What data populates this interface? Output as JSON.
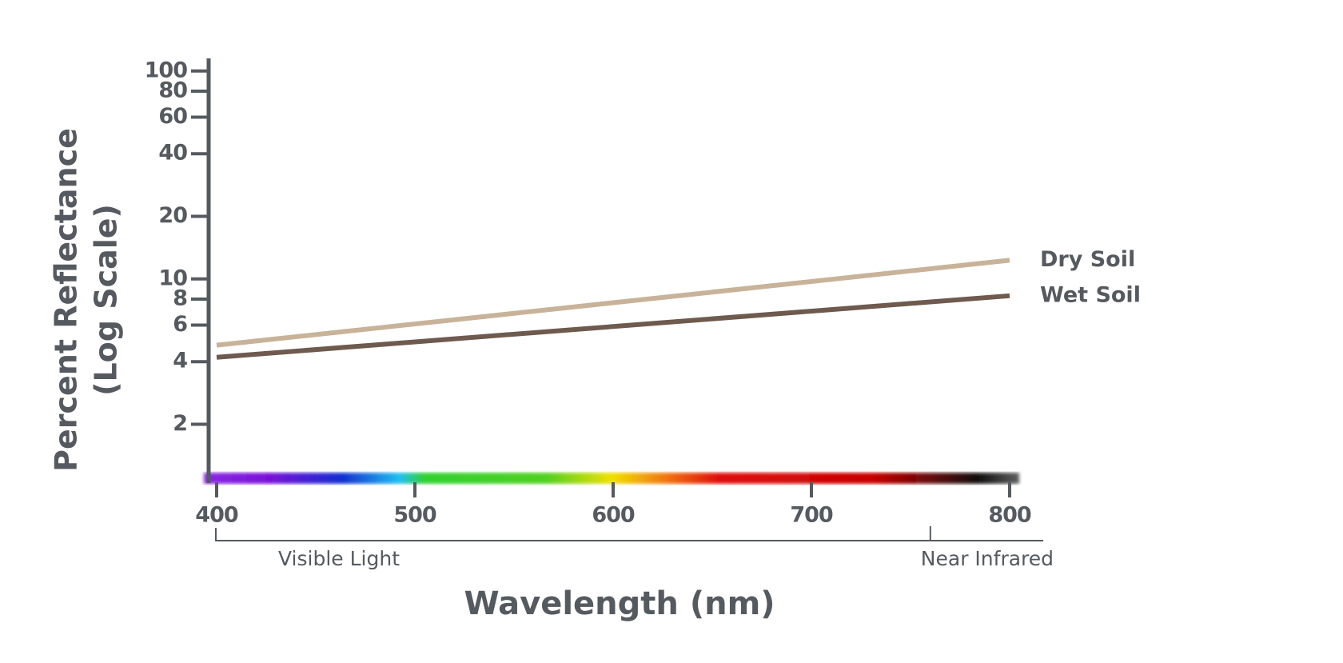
{
  "chart_data": {
    "type": "line",
    "xlabel": "Wavelength (nm)",
    "ylabel": [
      "Percent Reflectance",
      "(Log Scale)"
    ],
    "x": [
      400,
      800
    ],
    "xlim": [
      400,
      800
    ],
    "xticks": [
      400,
      500,
      600,
      700,
      800
    ],
    "ylim": [
      1.1,
      115
    ],
    "yticks": [
      2,
      4,
      6,
      8,
      10,
      20,
      40,
      60,
      80,
      100
    ],
    "log_y": true,
    "grid": false,
    "series": [
      {
        "name": "Dry Soil",
        "color": "#c8b39a",
        "values": [
          4.8,
          12.3
        ]
      },
      {
        "name": "Wet Soil",
        "color": "#6e5a4e",
        "values": [
          4.2,
          8.3
        ]
      }
    ],
    "annotations": [
      {
        "text": "Visible Light",
        "x": 400
      },
      {
        "text": "Near Infrared",
        "x": 760
      }
    ]
  }
}
